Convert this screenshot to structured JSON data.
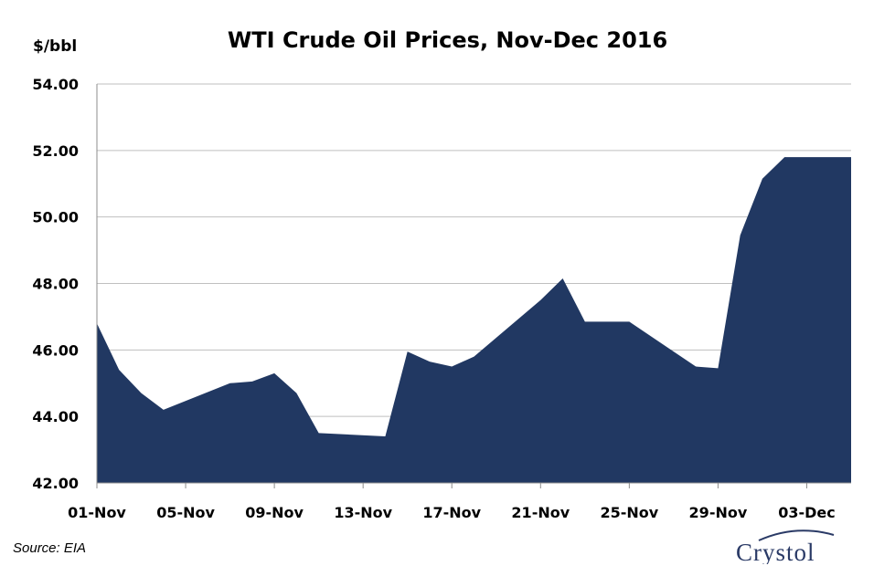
{
  "chart_data": {
    "type": "area",
    "title": "WTI Crude Oil Prices, Nov-Dec 2016",
    "ylabel": "$/bbl",
    "xlabel": "",
    "ylim": [
      42,
      54
    ],
    "yticks": [
      "42.00",
      "44.00",
      "46.00",
      "48.00",
      "50.00",
      "52.00",
      "54.00"
    ],
    "xticks": [
      {
        "label": "01-Nov",
        "day": 0
      },
      {
        "label": "05-Nov",
        "day": 4
      },
      {
        "label": "09-Nov",
        "day": 8
      },
      {
        "label": "13-Nov",
        "day": 12
      },
      {
        "label": "17-Nov",
        "day": 16
      },
      {
        "label": "21-Nov",
        "day": 20
      },
      {
        "label": "25-Nov",
        "day": 24
      },
      {
        "label": "29-Nov",
        "day": 28
      },
      {
        "label": "03-Dec",
        "day": 32
      }
    ],
    "xlim": [
      0,
      34
    ],
    "grid": true,
    "color": "#213862",
    "series": [
      {
        "x": [
          "01-Nov",
          "02-Nov",
          "03-Nov",
          "04-Nov",
          "07-Nov",
          "08-Nov",
          "09-Nov",
          "10-Nov",
          "11-Nov",
          "14-Nov",
          "15-Nov",
          "16-Nov",
          "17-Nov",
          "18-Nov",
          "21-Nov",
          "22-Nov",
          "23-Nov",
          "25-Nov",
          "28-Nov",
          "29-Nov",
          "30-Nov",
          "01-Dec",
          "02-Dec",
          "05-Dec"
        ],
        "day": [
          0,
          1,
          2,
          3,
          6,
          7,
          8,
          9,
          10,
          13,
          14,
          15,
          16,
          17,
          20,
          21,
          22,
          24,
          27,
          28,
          29,
          30,
          31,
          34
        ],
        "values": [
          46.8,
          45.4,
          44.7,
          44.2,
          45.0,
          45.05,
          45.3,
          44.7,
          43.5,
          43.4,
          45.95,
          45.65,
          45.5,
          45.8,
          47.5,
          48.15,
          46.85,
          46.85,
          45.5,
          45.45,
          49.45,
          51.15,
          51.8,
          51.8
        ]
      }
    ]
  },
  "source": "Source: EIA",
  "logo": {
    "name": "Crystol"
  }
}
